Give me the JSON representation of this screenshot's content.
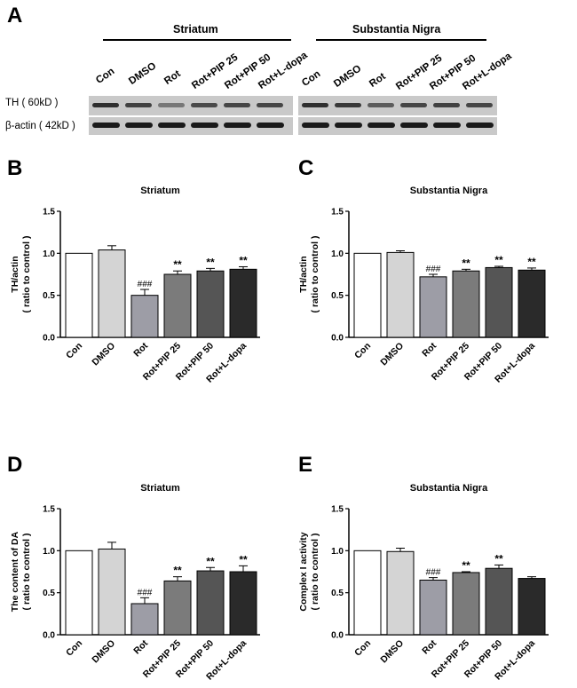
{
  "panel_a": {
    "letter": "A",
    "regions": [
      {
        "name": "Striatum",
        "lanes": [
          "Con",
          "DMSO",
          "Rot",
          "Rot+PIP 25",
          "Rot+PIP 50",
          "Rot+L-dopa"
        ],
        "th_intensity": [
          0.85,
          0.75,
          0.45,
          0.7,
          0.72,
          0.72
        ]
      },
      {
        "name": "Substantia Nigra",
        "lanes": [
          "Con",
          "DMSO",
          "Rot",
          "Rot+PIP 25",
          "Rot+PIP 50",
          "Rot+L-dopa"
        ],
        "th_intensity": [
          0.85,
          0.8,
          0.6,
          0.72,
          0.75,
          0.72
        ]
      }
    ],
    "blots": [
      "TH ( 60kD )",
      "β-actin ( 42kD )"
    ]
  },
  "chart_data": [
    {
      "panel": "B",
      "type": "bar",
      "title": "Striatum",
      "ylabel": "TH/actin",
      "ylabel2": "( ratio to control )",
      "categories": [
        "Con",
        "DMSO",
        "Rot",
        "Rot+PIP 25",
        "Rot+PIP 50",
        "Rot+L-dopa"
      ],
      "values": [
        1.0,
        1.04,
        0.5,
        0.75,
        0.79,
        0.81
      ],
      "errors": [
        0,
        0.05,
        0.07,
        0.04,
        0.03,
        0.03
      ],
      "annotations": [
        "",
        "",
        "###",
        "**",
        "**",
        "**"
      ],
      "fills": [
        "#ffffff",
        "#d4d4d4",
        "#9d9da6",
        "#7b7b7b",
        "#555555",
        "#2a2a2a"
      ],
      "ylim": [
        0,
        1.5
      ],
      "yticks": [
        "0.0",
        "0.5",
        "1.0",
        "1.5"
      ]
    },
    {
      "panel": "C",
      "type": "bar",
      "title": "Substantia Nigra",
      "ylabel": "TH/actin",
      "ylabel2": "( ratio to control )",
      "categories": [
        "Con",
        "DMSO",
        "Rot",
        "Rot+PIP 25",
        "Rot+PIP 50",
        "Rot+L-dopa"
      ],
      "values": [
        1.0,
        1.01,
        0.72,
        0.79,
        0.83,
        0.8
      ],
      "errors": [
        0,
        0.02,
        0.03,
        0.02,
        0.015,
        0.025
      ],
      "annotations": [
        "",
        "",
        "###",
        "**",
        "**",
        "**"
      ],
      "fills": [
        "#ffffff",
        "#d4d4d4",
        "#9d9da6",
        "#7b7b7b",
        "#555555",
        "#2a2a2a"
      ],
      "ylim": [
        0,
        1.5
      ],
      "yticks": [
        "0.0",
        "0.5",
        "1.0",
        "1.5"
      ]
    },
    {
      "panel": "D",
      "type": "bar",
      "title": "Striatum",
      "ylabel": "The content of DA",
      "ylabel2": "( ratio to control )",
      "categories": [
        "Con",
        "DMSO",
        "Rot",
        "Rot+PIP 25",
        "Rot+PIP 50",
        "Rot+L-dopa"
      ],
      "values": [
        1.0,
        1.02,
        0.37,
        0.64,
        0.76,
        0.75
      ],
      "errors": [
        0,
        0.08,
        0.07,
        0.05,
        0.04,
        0.07
      ],
      "annotations": [
        "",
        "",
        "###",
        "**",
        "**",
        "**"
      ],
      "fills": [
        "#ffffff",
        "#d4d4d4",
        "#9d9da6",
        "#7b7b7b",
        "#555555",
        "#2a2a2a"
      ],
      "ylim": [
        0,
        1.5
      ],
      "yticks": [
        "0.0",
        "0.5",
        "1.0",
        "1.5"
      ]
    },
    {
      "panel": "E",
      "type": "bar",
      "title": "Substantia Nigra",
      "ylabel": "Complex I activity",
      "ylabel2": "( ratio to control )",
      "categories": [
        "Con",
        "DMSO",
        "Rot",
        "Rot+PIP 25",
        "Rot+PIP 50",
        "Rot+L-dopa"
      ],
      "values": [
        1.0,
        0.99,
        0.65,
        0.74,
        0.79,
        0.67
      ],
      "errors": [
        0,
        0.04,
        0.03,
        0.01,
        0.04,
        0.02
      ],
      "annotations": [
        "",
        "",
        "###",
        "**",
        "**",
        ""
      ],
      "fills": [
        "#ffffff",
        "#d4d4d4",
        "#9d9da6",
        "#7b7b7b",
        "#555555",
        "#2a2a2a"
      ],
      "ylim": [
        0,
        1.5
      ],
      "yticks": [
        "0.0",
        "0.5",
        "1.0",
        "1.5"
      ]
    }
  ]
}
